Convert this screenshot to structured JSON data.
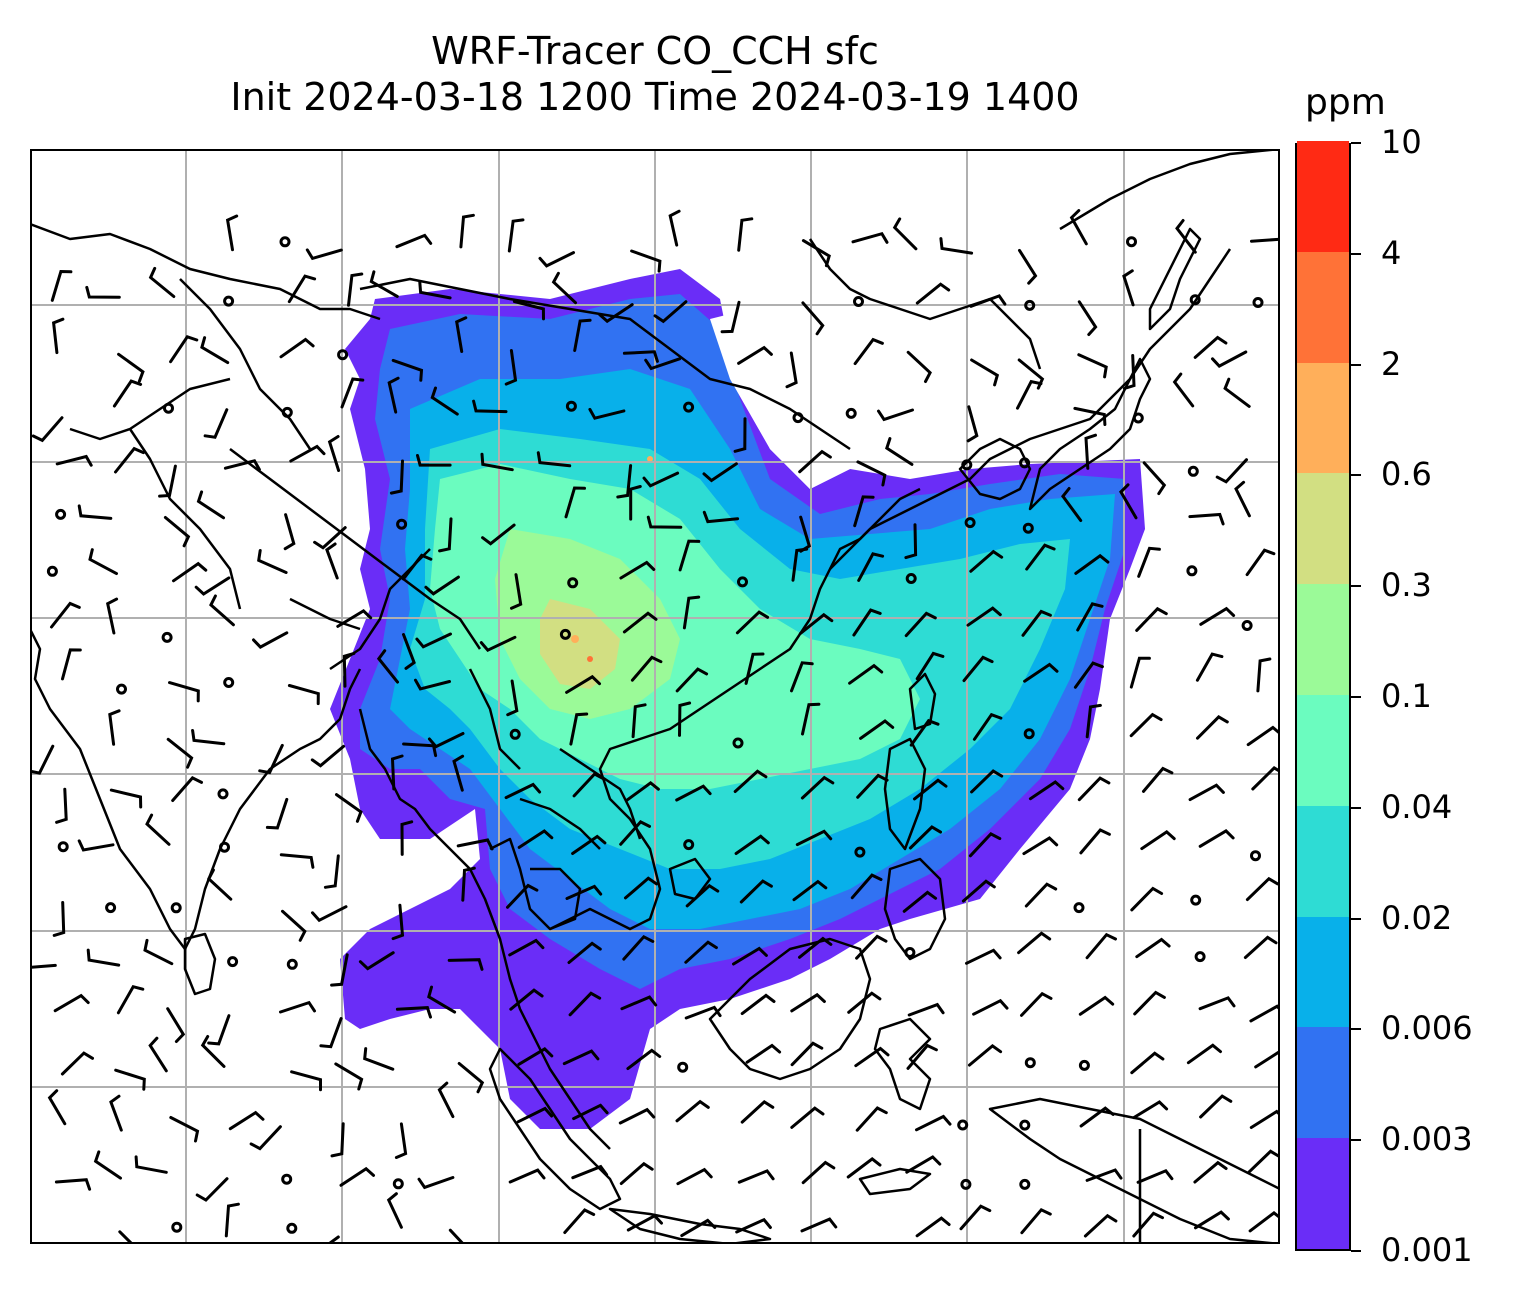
{
  "title": {
    "line1": "WRF-Tracer CO_CCH sfc",
    "line2": "Init 2024-03-18 1200 Time 2024-03-19 1400"
  },
  "colorbar": {
    "unit": "ppm",
    "levels": [
      "0.001",
      "0.003",
      "0.006",
      "0.02",
      "0.04",
      "0.1",
      "0.3",
      "0.6",
      "2",
      "4",
      "10"
    ],
    "colors": [
      "#6a2df7",
      "#3172f2",
      "#08b0ea",
      "#2edcd4",
      "#6bfcbf",
      "#9bfa98",
      "#d2df82",
      "#ffaf5a",
      "#ff7237",
      "#ff2a14"
    ]
  },
  "map": {
    "gridlines": "on",
    "background": "#ffffff",
    "grid_color": "#b0b0b0",
    "coast_color": "#000000"
  }
}
